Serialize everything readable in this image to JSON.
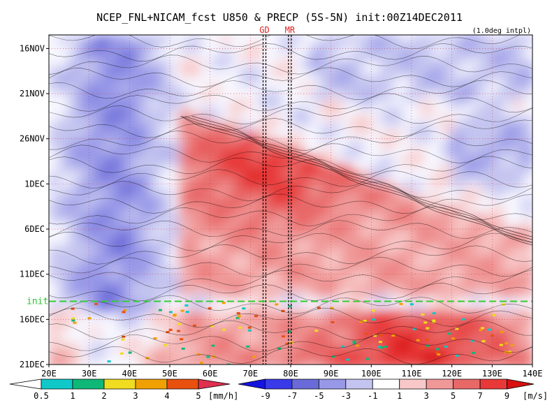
{
  "chart_data": {
    "type": "heatmap",
    "title": "NCEP_FNL+NICAM_fcst U850 & PRECP (5S-5N) init:00Z14DEC2011",
    "note": "(1.0deg intpl)",
    "x_ticks": [
      "20E",
      "30E",
      "40E",
      "50E",
      "60E",
      "70E",
      "80E",
      "90E",
      "100E",
      "110E",
      "120E",
      "130E",
      "140E"
    ],
    "x_range": [
      20,
      140
    ],
    "y_ticks": [
      {
        "label": "16NOV",
        "day": 0
      },
      {
        "label": "21NOV",
        "day": 5
      },
      {
        "label": "26NOV",
        "day": 10
      },
      {
        "label": "1DEC",
        "day": 15
      },
      {
        "label": "6DEC",
        "day": 20
      },
      {
        "label": "11DEC",
        "day": 25
      },
      {
        "label": "16DEC",
        "day": 30
      },
      {
        "label": "21DEC",
        "day": 35
      }
    ],
    "y_range_days": [
      -1.5,
      35
    ],
    "markers": [
      {
        "label": "GD",
        "lon": 73.5
      },
      {
        "label": "MR",
        "lon": 79.8
      }
    ],
    "init_line": {
      "label": "init",
      "day": 28
    },
    "precip_colorbar": {
      "unit": "[mm/h]",
      "labels": [
        "0.5",
        "1",
        "2",
        "3",
        "4",
        "5"
      ],
      "colors": [
        "#ffffff",
        "#10c8c8",
        "#10b878",
        "#f0dc20",
        "#f0a000",
        "#e85010",
        "#e03050"
      ]
    },
    "u850_colorbar": {
      "unit": "[m/s]",
      "labels": [
        "-9",
        "-7",
        "-5",
        "-3",
        "-1",
        "1",
        "3",
        "5",
        "7",
        "9"
      ],
      "colors": [
        "#1414e0",
        "#3a3ae8",
        "#6a6ad8",
        "#9898e8",
        "#c4c4f0",
        "#ffffff",
        "#f8c8c8",
        "#f09898",
        "#e86868",
        "#e83838",
        "#d81010"
      ]
    }
  }
}
